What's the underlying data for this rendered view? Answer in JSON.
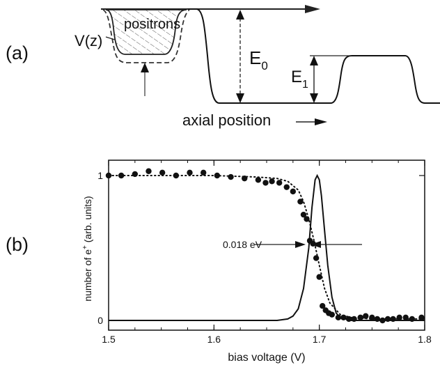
{
  "panel_a": {
    "label": "(a)",
    "potential_label_v": "V",
    "potential_label_z": "(z)",
    "positrons_label": "positrons",
    "e0_base": "E",
    "e0_sub": "0",
    "e1_base": "E",
    "e1_sub": "1",
    "axis_label": "axial position"
  },
  "panel_b": {
    "label": "(b)",
    "fwhm_label": "0.018 eV"
  },
  "chart_data": {
    "type": "scatter",
    "xlabel": "bias voltage (V)",
    "ylabel_prefix": "number of e",
    "ylabel_sup": "+",
    "ylabel_suffix": " (arb. units)",
    "xlim": [
      1.5,
      1.8
    ],
    "ylim": [
      0,
      1
    ],
    "x_ticks": [
      "1.5",
      "1.6",
      "1.7",
      "1.8"
    ],
    "y_ticks": [
      "0",
      "1"
    ],
    "grid": false,
    "series": [
      {
        "style": "markers",
        "x": [
          1.5,
          1.512,
          1.525,
          1.538,
          1.551,
          1.564,
          1.577,
          1.59,
          1.603,
          1.616,
          1.629,
          1.642,
          1.649,
          1.655,
          1.662,
          1.669,
          1.675,
          1.682,
          1.685,
          1.688,
          1.691,
          1.694,
          1.697,
          1.7,
          1.703,
          1.706,
          1.709,
          1.712,
          1.718,
          1.723,
          1.728,
          1.733,
          1.739,
          1.744,
          1.75,
          1.755,
          1.76,
          1.765,
          1.77,
          1.776,
          1.782,
          1.788,
          1.797
        ],
        "y": [
          1.0,
          1.0,
          1.01,
          1.03,
          1.02,
          1.0,
          1.02,
          1.02,
          1.0,
          0.99,
          0.98,
          0.97,
          0.95,
          0.96,
          0.95,
          0.92,
          0.89,
          0.82,
          0.73,
          0.7,
          0.55,
          0.53,
          0.43,
          0.3,
          0.1,
          0.07,
          0.05,
          0.04,
          0.02,
          0.02,
          0.01,
          0.01,
          0.02,
          0.03,
          0.02,
          0.01,
          0.0,
          0.01,
          0.01,
          0.02,
          0.02,
          0.01,
          0.02
        ]
      },
      {
        "style": "dotted-fit",
        "x": [
          1.5,
          1.55,
          1.6,
          1.64,
          1.66,
          1.67,
          1.68,
          1.685,
          1.69,
          1.695,
          1.7,
          1.705,
          1.71,
          1.72,
          1.73,
          1.75,
          1.8
        ],
        "y": [
          1.0,
          1.0,
          1.0,
          0.99,
          0.98,
          0.96,
          0.9,
          0.82,
          0.7,
          0.55,
          0.38,
          0.22,
          0.12,
          0.04,
          0.02,
          0.01,
          0.01
        ]
      },
      {
        "style": "solid-peak",
        "x": [
          1.5,
          1.6,
          1.66,
          1.67,
          1.675,
          1.68,
          1.685,
          1.69,
          1.693,
          1.696,
          1.698,
          1.7,
          1.702,
          1.705,
          1.708,
          1.712,
          1.716,
          1.72,
          1.73,
          1.8
        ],
        "y": [
          0.0,
          0.0,
          0.0,
          0.01,
          0.03,
          0.08,
          0.22,
          0.5,
          0.78,
          0.97,
          1.0,
          0.97,
          0.86,
          0.62,
          0.38,
          0.16,
          0.05,
          0.02,
          0.0,
          0.0
        ]
      }
    ]
  }
}
